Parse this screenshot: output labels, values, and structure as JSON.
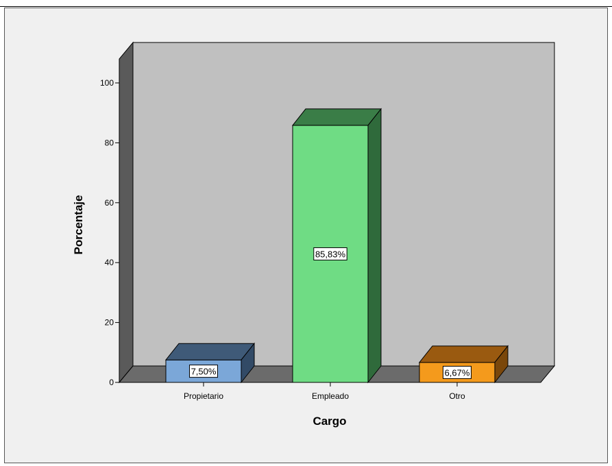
{
  "chart_data": {
    "type": "bar",
    "style": "3d",
    "categories": [
      "Propietario",
      "Empleado",
      "Otro"
    ],
    "values": [
      7.5,
      85.83,
      6.67
    ],
    "data_labels": [
      "7,50%",
      "85,83%",
      "6,67%"
    ],
    "xlabel": "Cargo",
    "ylabel": "Porcentaje",
    "ylim": [
      0,
      100
    ],
    "yticks": [
      0,
      20,
      40,
      60,
      80,
      100
    ],
    "grid": false,
    "colors": {
      "bars": [
        "#7ba7d8",
        "#6fdc84",
        "#f49a1c"
      ],
      "bar_tops": [
        "#3f5a78",
        "#3a7d47",
        "#9a5a10"
      ],
      "bar_sides": [
        "#324a66",
        "#2f6a3b",
        "#7a470b"
      ],
      "plot_back": "#c0c0c0",
      "plot_floor": "#6b6b6b",
      "plot_side": "#5a5a5a",
      "frame_background": "#f0f0f0"
    }
  }
}
